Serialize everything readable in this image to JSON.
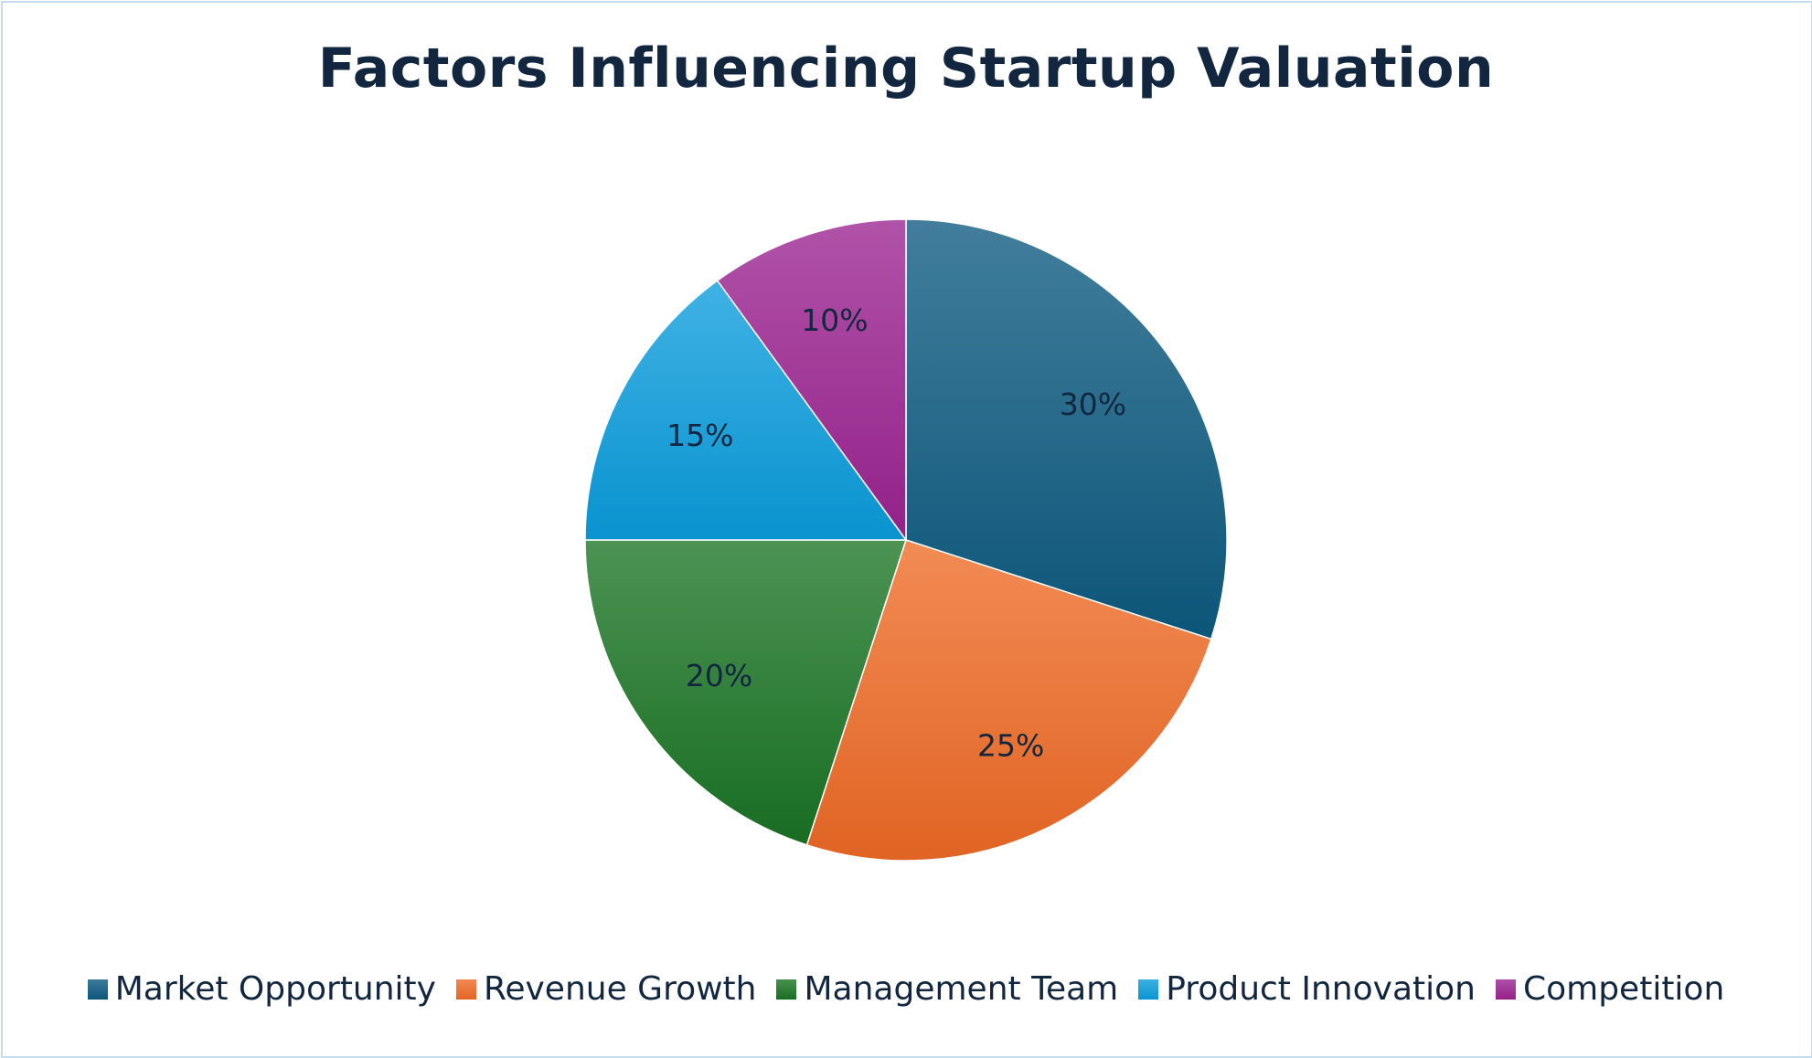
{
  "chart_data": {
    "type": "pie",
    "title": "Factors Influencing Startup Valuation",
    "categories": [
      "Market Opportunity",
      "Revenue Growth",
      "Management Team",
      "Product Innovation",
      "Competition"
    ],
    "values": [
      30,
      25,
      20,
      15,
      10
    ],
    "data_labels": [
      "30%",
      "25%",
      "20%",
      "15%",
      "10%"
    ],
    "colors": [
      "#0d5a80",
      "#ee6a25",
      "#1a7424",
      "#0a9cdc",
      "#9b2391"
    ],
    "start_angle": "12 o'clock",
    "direction": "clockwise",
    "legend_position": "bottom"
  }
}
